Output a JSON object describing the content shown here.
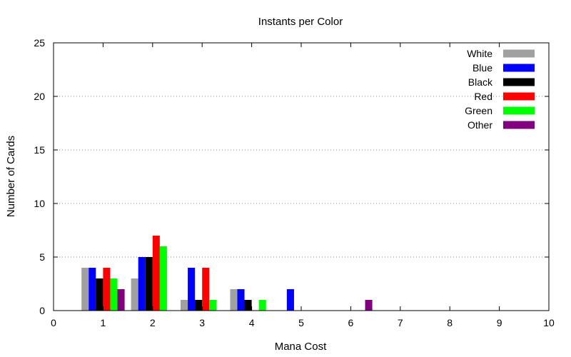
{
  "chart_data": {
    "type": "bar",
    "title": "Instants per Color",
    "xlabel": "Mana Cost",
    "ylabel": "Number of Cards",
    "xlim": [
      0,
      10
    ],
    "ylim": [
      0,
      25
    ],
    "x_ticks": [
      "0",
      "1",
      "2",
      "3",
      "4",
      "5",
      "6",
      "7",
      "8",
      "9",
      "10"
    ],
    "y_ticks": [
      "0",
      "5",
      "10",
      "15",
      "20",
      "25"
    ],
    "grid": "horizontal dotted",
    "legend_position": "top-right",
    "categories": [
      1,
      2,
      3,
      4,
      5,
      6
    ],
    "series": [
      {
        "name": "White",
        "color": "#a0a0a0",
        "values": [
          4,
          3,
          1,
          2,
          0,
          0
        ]
      },
      {
        "name": "Blue",
        "color": "#0000ff",
        "values": [
          4,
          5,
          4,
          2,
          2,
          0
        ]
      },
      {
        "name": "Black",
        "color": "#000000",
        "values": [
          3,
          5,
          1,
          1,
          0,
          0
        ]
      },
      {
        "name": "Red",
        "color": "#ff0000",
        "values": [
          4,
          7,
          4,
          0,
          0,
          0
        ]
      },
      {
        "name": "Green",
        "color": "#00ff00",
        "values": [
          3,
          6,
          1,
          1,
          0,
          0
        ]
      },
      {
        "name": "Other",
        "color": "#800080",
        "values": [
          2,
          0,
          0,
          0,
          0,
          1
        ]
      }
    ]
  }
}
